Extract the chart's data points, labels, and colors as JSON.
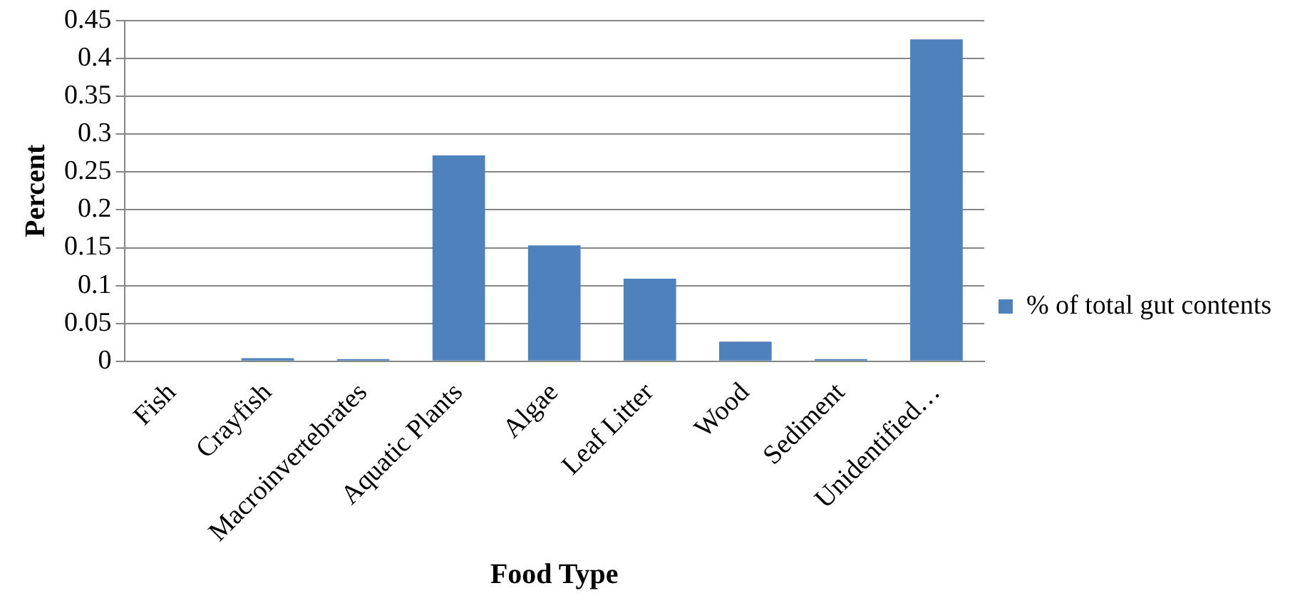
{
  "chart_data": {
    "type": "bar",
    "xlabel": "Food Type",
    "ylabel": "Percent",
    "categories": [
      "Fish",
      "Crayfish",
      "Macroinvertebrates",
      "Aquatic Plants",
      "Algae",
      "Leaf Litter",
      "Wood",
      "Sediment",
      "Unidentified…"
    ],
    "series": [
      {
        "name": "% of total gut contents",
        "color": "#4f81bd",
        "values": [
          0,
          0.004,
          0.003,
          0.272,
          0.153,
          0.109,
          0.026,
          0.003,
          0.425
        ]
      }
    ],
    "ylim": [
      0,
      0.45
    ],
    "yticks": [
      0,
      0.05,
      0.1,
      0.15,
      0.2,
      0.25,
      0.3,
      0.35,
      0.4,
      0.45
    ],
    "grid": "y",
    "legend": "right"
  }
}
